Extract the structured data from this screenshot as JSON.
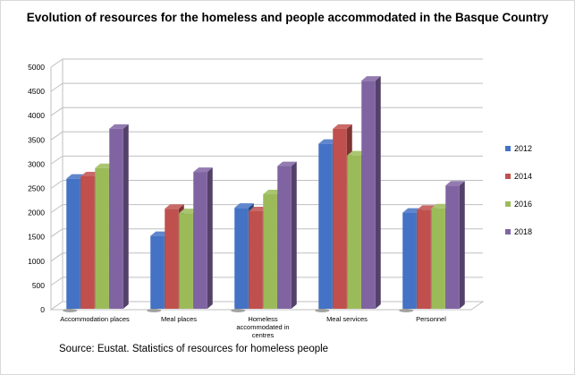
{
  "chart_data": {
    "type": "bar",
    "title": "Evolution of resources for the homeless and people accommodated in the Basque Country",
    "categories": [
      "Accommodation places",
      "Meal places",
      "Homeless accommodated in centres",
      "Meal services",
      "Personnel"
    ],
    "category_lines": [
      [
        "Accommodation places"
      ],
      [
        "Meal places"
      ],
      [
        "Homeless",
        "accommodated in",
        "centres"
      ],
      [
        "Meal services"
      ],
      [
        "Personnel"
      ]
    ],
    "series": [
      {
        "name": "2012",
        "color": "#4472C4",
        "values": [
          2700,
          1520,
          2100,
          3420,
          2000
        ]
      },
      {
        "name": "2014",
        "color": "#C0504D",
        "values": [
          2750,
          2080,
          2030,
          3730,
          2060
        ]
      },
      {
        "name": "2016",
        "color": "#9BBB59",
        "values": [
          2920,
          1990,
          2380,
          3180,
          2090
        ]
      },
      {
        "name": "2018",
        "color": "#8064A2",
        "values": [
          3730,
          2840,
          2960,
          4720,
          2560
        ]
      }
    ],
    "ylim": [
      0,
      5000
    ],
    "yticks": [
      0,
      500,
      1000,
      1500,
      2000,
      2500,
      3000,
      3500,
      4000,
      4500,
      5000
    ],
    "xlabel": "",
    "ylabel": "",
    "grid": true,
    "legend": "right"
  },
  "source": "Source: Eustat. Statistics of resources for homeless people"
}
